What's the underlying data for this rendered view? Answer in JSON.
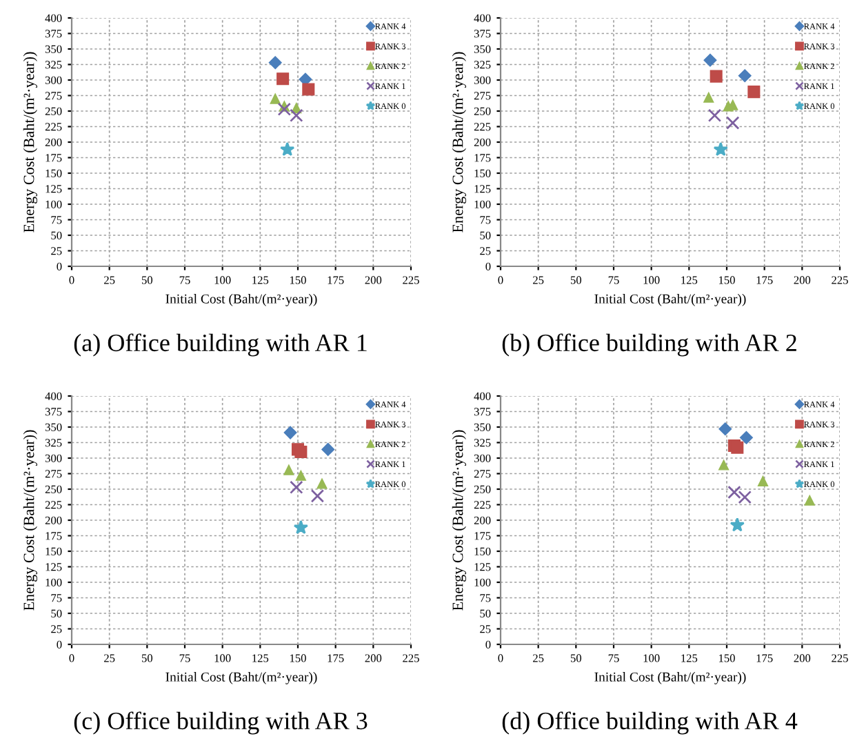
{
  "chart_data": [
    {
      "type": "scatter",
      "title": "(a) Office building with AR 1",
      "xlabel": "Initial Cost (Baht/(m²·year))",
      "ylabel": "Energy Cost (Baht/(m²·year))",
      "xlim": [
        0,
        225
      ],
      "ylim": [
        0,
        400
      ],
      "xticks": [
        0,
        25,
        50,
        75,
        100,
        125,
        150,
        175,
        200,
        225
      ],
      "yticks": [
        0,
        25,
        50,
        75,
        100,
        125,
        150,
        175,
        200,
        225,
        250,
        275,
        300,
        325,
        350,
        375,
        400
      ],
      "grid": true,
      "legend": "top right",
      "series": [
        {
          "name": "RANK 4",
          "color": "#4a7ebb",
          "marker": "diamond",
          "x": [
            135,
            155
          ],
          "values": [
            328,
            301
          ]
        },
        {
          "name": "RANK 3",
          "color": "#be4b48",
          "marker": "square",
          "x": [
            140,
            157
          ],
          "values": [
            302,
            285
          ]
        },
        {
          "name": "RANK 2",
          "color": "#98b954",
          "marker": "triangle",
          "x": [
            135,
            141,
            149
          ],
          "values": [
            270,
            258,
            255
          ]
        },
        {
          "name": "RANK 1",
          "color": "#7d60a0",
          "marker": "cross",
          "x": [
            141,
            149
          ],
          "values": [
            253,
            243
          ]
        },
        {
          "name": "RANK 0",
          "color": "#4bacc6",
          "marker": "star",
          "x": [
            143
          ],
          "values": [
            188
          ]
        }
      ]
    },
    {
      "type": "scatter",
      "title": "(b) Office building with AR 2",
      "xlabel": "Initial Cost (Baht/(m²·year))",
      "ylabel": "Energy Cost (Baht/(m²·year))",
      "xlim": [
        0,
        225
      ],
      "ylim": [
        0,
        400
      ],
      "xticks": [
        0,
        25,
        50,
        75,
        100,
        125,
        150,
        175,
        200,
        225
      ],
      "yticks": [
        0,
        25,
        50,
        75,
        100,
        125,
        150,
        175,
        200,
        225,
        250,
        275,
        300,
        325,
        350,
        375,
        400
      ],
      "grid": true,
      "legend": "top right",
      "series": [
        {
          "name": "RANK 4",
          "color": "#4a7ebb",
          "marker": "diamond",
          "x": [
            139,
            162
          ],
          "values": [
            332,
            307
          ]
        },
        {
          "name": "RANK 3",
          "color": "#be4b48",
          "marker": "square",
          "x": [
            143,
            168
          ],
          "values": [
            306,
            281
          ]
        },
        {
          "name": "RANK 2",
          "color": "#98b954",
          "marker": "triangle",
          "x": [
            138,
            151,
            154
          ],
          "values": [
            272,
            258,
            260
          ]
        },
        {
          "name": "RANK 1",
          "color": "#7d60a0",
          "marker": "cross",
          "x": [
            142,
            154
          ],
          "values": [
            243,
            231
          ]
        },
        {
          "name": "RANK 0",
          "color": "#4bacc6",
          "marker": "star",
          "x": [
            146
          ],
          "values": [
            188
          ]
        }
      ]
    },
    {
      "type": "scatter",
      "title": "(c) Office building with AR 3",
      "xlabel": "Initial Cost (Baht/(m²·year))",
      "ylabel": "Energy Cost (Baht/(m²·year))",
      "xlim": [
        0,
        225
      ],
      "ylim": [
        0,
        400
      ],
      "xticks": [
        0,
        25,
        50,
        75,
        100,
        125,
        150,
        175,
        200,
        225
      ],
      "yticks": [
        0,
        25,
        50,
        75,
        100,
        125,
        150,
        175,
        200,
        225,
        250,
        275,
        300,
        325,
        350,
        375,
        400
      ],
      "grid": true,
      "legend": "top right",
      "series": [
        {
          "name": "RANK 4",
          "color": "#4a7ebb",
          "marker": "diamond",
          "x": [
            145,
            170
          ],
          "values": [
            341,
            314
          ]
        },
        {
          "name": "RANK 3",
          "color": "#be4b48",
          "marker": "square",
          "x": [
            150,
            152
          ],
          "values": [
            314,
            310
          ]
        },
        {
          "name": "RANK 2",
          "color": "#98b954",
          "marker": "triangle",
          "x": [
            144,
            152,
            166
          ],
          "values": [
            281,
            272,
            259
          ]
        },
        {
          "name": "RANK 1",
          "color": "#7d60a0",
          "marker": "cross",
          "x": [
            149,
            163
          ],
          "values": [
            253,
            239
          ]
        },
        {
          "name": "RANK 0",
          "color": "#4bacc6",
          "marker": "star",
          "x": [
            152
          ],
          "values": [
            188
          ]
        }
      ]
    },
    {
      "type": "scatter",
      "title": "(d) Office building with AR 4",
      "xlabel": "Initial Cost (Baht/(m²·year))",
      "ylabel": "Energy Cost (Baht/(m²·year))",
      "xlim": [
        0,
        225
      ],
      "ylim": [
        0,
        400
      ],
      "xticks": [
        0,
        25,
        50,
        75,
        100,
        125,
        150,
        175,
        200,
        225
      ],
      "yticks": [
        0,
        25,
        50,
        75,
        100,
        125,
        150,
        175,
        200,
        225,
        250,
        275,
        300,
        325,
        350,
        375,
        400
      ],
      "grid": true,
      "legend": "top right",
      "series": [
        {
          "name": "RANK 4",
          "color": "#4a7ebb",
          "marker": "diamond",
          "x": [
            149,
            163
          ],
          "values": [
            347,
            333
          ]
        },
        {
          "name": "RANK 3",
          "color": "#be4b48",
          "marker": "square",
          "x": [
            155,
            157
          ],
          "values": [
            320,
            317
          ]
        },
        {
          "name": "RANK 2",
          "color": "#98b954",
          "marker": "triangle",
          "x": [
            148,
            174,
            205
          ],
          "values": [
            289,
            263,
            232
          ]
        },
        {
          "name": "RANK 1",
          "color": "#7d60a0",
          "marker": "cross",
          "x": [
            155,
            162
          ],
          "values": [
            245,
            237
          ]
        },
        {
          "name": "RANK 0",
          "color": "#4bacc6",
          "marker": "star",
          "x": [
            157
          ],
          "values": [
            192
          ]
        }
      ]
    }
  ]
}
